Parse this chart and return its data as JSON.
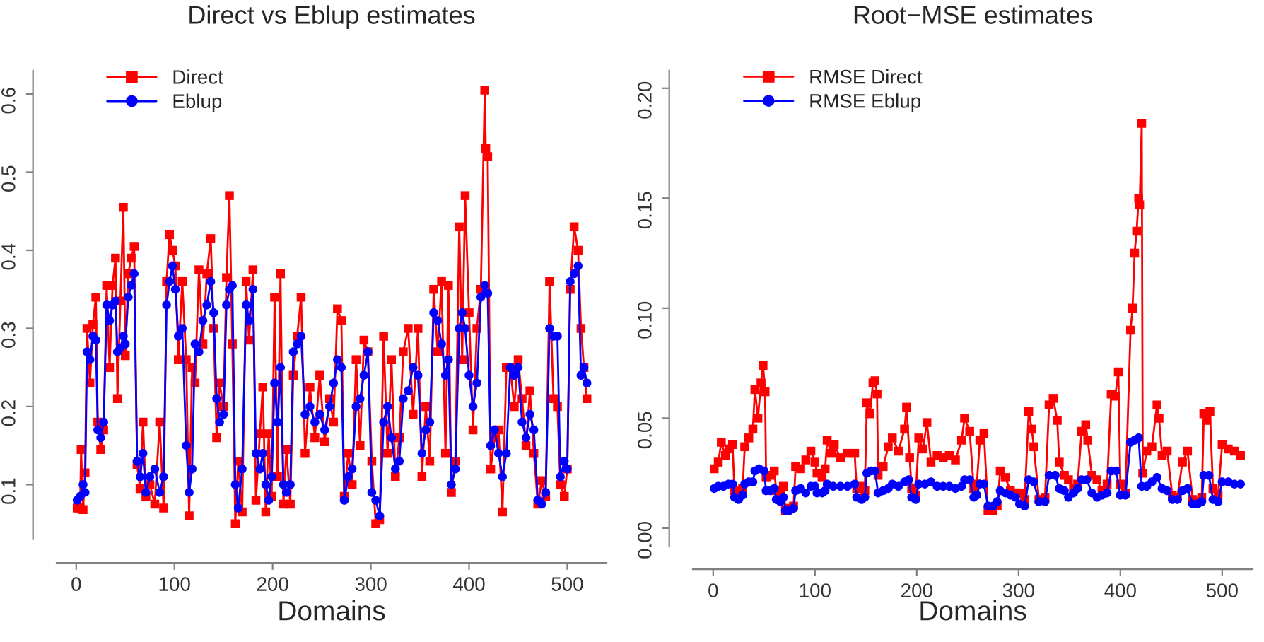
{
  "chart_data": [
    {
      "type": "line",
      "title": "Direct vs Eblup estimates",
      "xlabel": "Domains",
      "xlim": [
        -20,
        540
      ],
      "ylim": [
        0.03,
        0.63
      ],
      "xticks": [
        0,
        100,
        200,
        300,
        400,
        500
      ],
      "yticks": [
        0.1,
        0.2,
        0.3,
        0.4,
        0.5,
        0.6
      ],
      "grid": false,
      "legend": "top left",
      "series": [
        {
          "name": "Direct",
          "color": "#ff0000",
          "marker": "square",
          "x": [
            1,
            4,
            5,
            7,
            9,
            11,
            14,
            17,
            20,
            22,
            25,
            28,
            31,
            34,
            37,
            40,
            42,
            45,
            48,
            50,
            53,
            56,
            59,
            62,
            65,
            68,
            71,
            75,
            80,
            85,
            89,
            92,
            95,
            98,
            101,
            104,
            108,
            112,
            115,
            118,
            121,
            125,
            129,
            133,
            137,
            140,
            143,
            146,
            150,
            153,
            156,
            159,
            162,
            165,
            169,
            173,
            176,
            180,
            183,
            187,
            190,
            193,
            196,
            199,
            202,
            205,
            208,
            211,
            214,
            218,
            221,
            225,
            229,
            233,
            238,
            243,
            248,
            253,
            258,
            262,
            266,
            270,
            273,
            277,
            281,
            285,
            289,
            293,
            297,
            301,
            305,
            309,
            313,
            317,
            321,
            325,
            329,
            333,
            338,
            343,
            348,
            352,
            356,
            360,
            364,
            368,
            372,
            376,
            379,
            382,
            386,
            390,
            393,
            396,
            400,
            404,
            408,
            412,
            416,
            417,
            419,
            422,
            426,
            430,
            434,
            438,
            442,
            446,
            450,
            454,
            458,
            462,
            466,
            470,
            474,
            478,
            482,
            486,
            490,
            493,
            497,
            500,
            503,
            507,
            511,
            514,
            517,
            520
          ],
          "values": [
            0.07,
            0.07,
            0.145,
            0.068,
            0.115,
            0.3,
            0.23,
            0.305,
            0.34,
            0.18,
            0.145,
            0.17,
            0.355,
            0.25,
            0.355,
            0.39,
            0.21,
            0.335,
            0.455,
            0.265,
            0.37,
            0.39,
            0.405,
            0.125,
            0.095,
            0.18,
            0.085,
            0.1,
            0.075,
            0.18,
            0.07,
            0.36,
            0.42,
            0.4,
            0.38,
            0.26,
            0.36,
            0.26,
            0.06,
            0.25,
            0.23,
            0.375,
            0.28,
            0.37,
            0.415,
            0.3,
            0.16,
            0.23,
            0.2,
            0.365,
            0.47,
            0.28,
            0.05,
            0.13,
            0.065,
            0.36,
            0.285,
            0.375,
            0.08,
            0.165,
            0.225,
            0.065,
            0.165,
            0.085,
            0.34,
            0.11,
            0.37,
            0.075,
            0.145,
            0.075,
            0.24,
            0.29,
            0.34,
            0.14,
            0.225,
            0.16,
            0.24,
            0.155,
            0.21,
            0.18,
            0.325,
            0.31,
            0.085,
            0.14,
            0.1,
            0.26,
            0.15,
            0.285,
            0.27,
            0.13,
            0.05,
            0.055,
            0.29,
            0.14,
            0.26,
            0.11,
            0.16,
            0.27,
            0.3,
            0.19,
            0.3,
            0.11,
            0.2,
            0.13,
            0.35,
            0.27,
            0.36,
            0.14,
            0.355,
            0.09,
            0.13,
            0.43,
            0.26,
            0.47,
            0.32,
            0.17,
            0.3,
            0.35,
            0.605,
            0.53,
            0.52,
            0.12,
            0.16,
            0.17,
            0.065,
            0.25,
            0.25,
            0.2,
            0.26,
            0.21,
            0.15,
            0.22,
            0.14,
            0.075,
            0.105,
            0.085,
            0.36,
            0.21,
            0.2,
            0.1,
            0.085,
            0.12,
            0.35,
            0.43,
            0.4,
            0.3,
            0.25,
            0.21
          ]
        },
        {
          "name": "Eblup",
          "color": "#0000ff",
          "marker": "circle",
          "x": [
            1,
            4,
            7,
            9,
            11,
            14,
            17,
            20,
            22,
            25,
            28,
            31,
            34,
            37,
            40,
            42,
            45,
            48,
            50,
            53,
            56,
            59,
            62,
            65,
            68,
            71,
            75,
            80,
            85,
            89,
            92,
            95,
            98,
            101,
            104,
            108,
            112,
            115,
            118,
            121,
            125,
            129,
            133,
            137,
            140,
            143,
            146,
            150,
            153,
            156,
            159,
            162,
            165,
            169,
            173,
            176,
            180,
            183,
            187,
            190,
            193,
            196,
            199,
            202,
            205,
            208,
            211,
            214,
            218,
            221,
            225,
            229,
            233,
            238,
            243,
            248,
            253,
            258,
            262,
            266,
            270,
            273,
            277,
            281,
            285,
            289,
            293,
            297,
            301,
            305,
            309,
            313,
            317,
            321,
            325,
            329,
            333,
            338,
            343,
            348,
            352,
            356,
            360,
            364,
            368,
            372,
            376,
            379,
            382,
            386,
            390,
            393,
            396,
            400,
            404,
            408,
            412,
            416,
            419,
            422,
            426,
            430,
            434,
            438,
            442,
            446,
            450,
            454,
            458,
            462,
            466,
            470,
            474,
            478,
            482,
            486,
            490,
            493,
            497,
            500,
            503,
            507,
            511,
            514,
            517,
            520
          ],
          "values": [
            0.08,
            0.085,
            0.1,
            0.09,
            0.27,
            0.26,
            0.29,
            0.285,
            0.17,
            0.16,
            0.18,
            0.33,
            0.31,
            0.33,
            0.335,
            0.27,
            0.275,
            0.29,
            0.28,
            0.34,
            0.355,
            0.37,
            0.13,
            0.11,
            0.14,
            0.09,
            0.11,
            0.12,
            0.09,
            0.11,
            0.33,
            0.36,
            0.38,
            0.35,
            0.29,
            0.3,
            0.15,
            0.09,
            0.12,
            0.28,
            0.27,
            0.31,
            0.33,
            0.36,
            0.32,
            0.21,
            0.18,
            0.19,
            0.33,
            0.35,
            0.355,
            0.1,
            0.07,
            0.12,
            0.33,
            0.31,
            0.35,
            0.14,
            0.12,
            0.14,
            0.1,
            0.08,
            0.11,
            0.23,
            0.18,
            0.25,
            0.1,
            0.09,
            0.1,
            0.27,
            0.28,
            0.29,
            0.19,
            0.2,
            0.18,
            0.19,
            0.17,
            0.2,
            0.23,
            0.26,
            0.25,
            0.08,
            0.11,
            0.12,
            0.2,
            0.21,
            0.24,
            0.27,
            0.09,
            0.08,
            0.06,
            0.18,
            0.2,
            0.16,
            0.12,
            0.13,
            0.21,
            0.22,
            0.25,
            0.24,
            0.14,
            0.17,
            0.18,
            0.32,
            0.31,
            0.28,
            0.24,
            0.26,
            0.1,
            0.12,
            0.3,
            0.32,
            0.3,
            0.24,
            0.2,
            0.23,
            0.34,
            0.355,
            0.345,
            0.15,
            0.17,
            0.14,
            0.11,
            0.14,
            0.25,
            0.24,
            0.25,
            0.18,
            0.16,
            0.19,
            0.17,
            0.08,
            0.075,
            0.09,
            0.3,
            0.29,
            0.29,
            0.11,
            0.13,
            0.12,
            0.36,
            0.37,
            0.38,
            0.24,
            0.25,
            0.23
          ]
        }
      ]
    },
    {
      "type": "line",
      "title": "Root−MSE estimates",
      "xlabel": "Domains",
      "xlim": [
        -20,
        530
      ],
      "ylim": [
        -0.008,
        0.208
      ],
      "xticks": [
        0,
        100,
        200,
        300,
        400,
        500
      ],
      "yticks": [
        {
          "value": 0,
          "label": "0.00"
        },
        0.05,
        {
          "value": 0.1,
          "label": "0.10"
        },
        0.15,
        {
          "value": 0.2,
          "label": "0.20"
        }
      ],
      "grid": false,
      "legend": "top left",
      "series": [
        {
          "name": "RMSE Direct",
          "color": "#ff0000",
          "marker": "square",
          "x": [
            1,
            5,
            8,
            12,
            16,
            19,
            21,
            25,
            29,
            31,
            35,
            39,
            41,
            44,
            47,
            49,
            51,
            52,
            56,
            60,
            62,
            66,
            69,
            71,
            75,
            79,
            81,
            86,
            91,
            96,
            100,
            102,
            107,
            110,
            112,
            116,
            119,
            125,
            132,
            139,
            141,
            146,
            149,
            151,
            154,
            157,
            159,
            161,
            162,
            167,
            172,
            176,
            182,
            188,
            190,
            193,
            195,
            199,
            202,
            206,
            210,
            214,
            220,
            226,
            232,
            238,
            244,
            247,
            252,
            256,
            259,
            262,
            266,
            270,
            275,
            279,
            282,
            287,
            292,
            297,
            301,
            306,
            310,
            313,
            315,
            320,
            326,
            330,
            334,
            338,
            340,
            345,
            349,
            354,
            358,
            362,
            366,
            368,
            372,
            377,
            382,
            387,
            391,
            395,
            398,
            400,
            405,
            410,
            412,
            414,
            416,
            418,
            419,
            421,
            422,
            426,
            431,
            436,
            438,
            441,
            446,
            451,
            456,
            461,
            466,
            471,
            476,
            480,
            482,
            485,
            488,
            491,
            496,
            500,
            506,
            512,
            518
          ],
          "values": [
            0.027,
            0.03,
            0.039,
            0.033,
            0.036,
            0.038,
            0.017,
            0.016,
            0.018,
            0.037,
            0.041,
            0.045,
            0.063,
            0.05,
            0.066,
            0.074,
            0.062,
            0.023,
            0.024,
            0.026,
            0.017,
            0.015,
            0.019,
            0.008,
            0.009,
            0.01,
            0.028,
            0.027,
            0.031,
            0.035,
            0.03,
            0.025,
            0.023,
            0.027,
            0.04,
            0.034,
            0.038,
            0.032,
            0.034,
            0.034,
            0.018,
            0.019,
            0.017,
            0.057,
            0.052,
            0.066,
            0.067,
            0.061,
            0.024,
            0.028,
            0.037,
            0.041,
            0.035,
            0.045,
            0.055,
            0.032,
            0.018,
            0.015,
            0.041,
            0.036,
            0.048,
            0.03,
            0.033,
            0.032,
            0.033,
            0.031,
            0.04,
            0.05,
            0.044,
            0.018,
            0.02,
            0.04,
            0.043,
            0.008,
            0.008,
            0.01,
            0.026,
            0.023,
            0.017,
            0.016,
            0.016,
            0.013,
            0.053,
            0.045,
            0.037,
            0.013,
            0.014,
            0.056,
            0.059,
            0.049,
            0.03,
            0.024,
            0.022,
            0.018,
            0.02,
            0.044,
            0.047,
            0.04,
            0.024,
            0.022,
            0.017,
            0.02,
            0.061,
            0.06,
            0.071,
            0.02,
            0.016,
            0.09,
            0.1,
            0.125,
            0.135,
            0.15,
            0.147,
            0.184,
            0.025,
            0.035,
            0.037,
            0.056,
            0.05,
            0.033,
            0.035,
            0.015,
            0.014,
            0.03,
            0.035,
            0.013,
            0.012,
            0.014,
            0.052,
            0.049,
            0.053,
            0.018,
            0.015,
            0.038,
            0.036,
            0.035,
            0.033
          ]
        },
        {
          "name": "RMSE Eblup",
          "color": "#0000ff",
          "marker": "circle",
          "x": [
            1,
            5,
            10,
            15,
            19,
            21,
            25,
            29,
            31,
            35,
            39,
            41,
            45,
            50,
            52,
            56,
            60,
            62,
            66,
            69,
            71,
            75,
            79,
            81,
            86,
            91,
            96,
            100,
            102,
            107,
            110,
            112,
            118,
            125,
            132,
            139,
            141,
            146,
            149,
            151,
            155,
            159,
            162,
            167,
            172,
            176,
            182,
            188,
            192,
            195,
            199,
            202,
            208,
            214,
            220,
            226,
            232,
            238,
            244,
            247,
            252,
            256,
            259,
            262,
            266,
            270,
            275,
            279,
            282,
            287,
            292,
            297,
            301,
            306,
            310,
            315,
            320,
            326,
            330,
            336,
            340,
            345,
            349,
            354,
            358,
            362,
            367,
            372,
            377,
            382,
            387,
            391,
            396,
            400,
            405,
            410,
            414,
            418,
            421,
            426,
            431,
            436,
            441,
            446,
            451,
            456,
            461,
            466,
            471,
            476,
            480,
            482,
            487,
            491,
            496,
            500,
            506,
            512,
            518
          ],
          "values": [
            0.018,
            0.019,
            0.019,
            0.02,
            0.02,
            0.014,
            0.013,
            0.015,
            0.02,
            0.021,
            0.021,
            0.026,
            0.027,
            0.026,
            0.017,
            0.017,
            0.018,
            0.013,
            0.012,
            0.014,
            0.008,
            0.008,
            0.009,
            0.017,
            0.018,
            0.016,
            0.019,
            0.019,
            0.016,
            0.016,
            0.017,
            0.02,
            0.019,
            0.019,
            0.019,
            0.02,
            0.014,
            0.013,
            0.014,
            0.025,
            0.026,
            0.026,
            0.016,
            0.017,
            0.018,
            0.02,
            0.019,
            0.021,
            0.022,
            0.014,
            0.013,
            0.02,
            0.02,
            0.021,
            0.019,
            0.019,
            0.019,
            0.018,
            0.019,
            0.022,
            0.022,
            0.014,
            0.015,
            0.02,
            0.02,
            0.01,
            0.01,
            0.012,
            0.017,
            0.016,
            0.015,
            0.014,
            0.011,
            0.01,
            0.022,
            0.021,
            0.012,
            0.012,
            0.024,
            0.024,
            0.018,
            0.017,
            0.014,
            0.016,
            0.018,
            0.022,
            0.022,
            0.016,
            0.014,
            0.015,
            0.016,
            0.026,
            0.026,
            0.015,
            0.015,
            0.039,
            0.04,
            0.041,
            0.019,
            0.019,
            0.021,
            0.023,
            0.018,
            0.017,
            0.013,
            0.013,
            0.017,
            0.018,
            0.011,
            0.011,
            0.012,
            0.024,
            0.024,
            0.013,
            0.012,
            0.021,
            0.021,
            0.02,
            0.02
          ]
        }
      ]
    }
  ]
}
